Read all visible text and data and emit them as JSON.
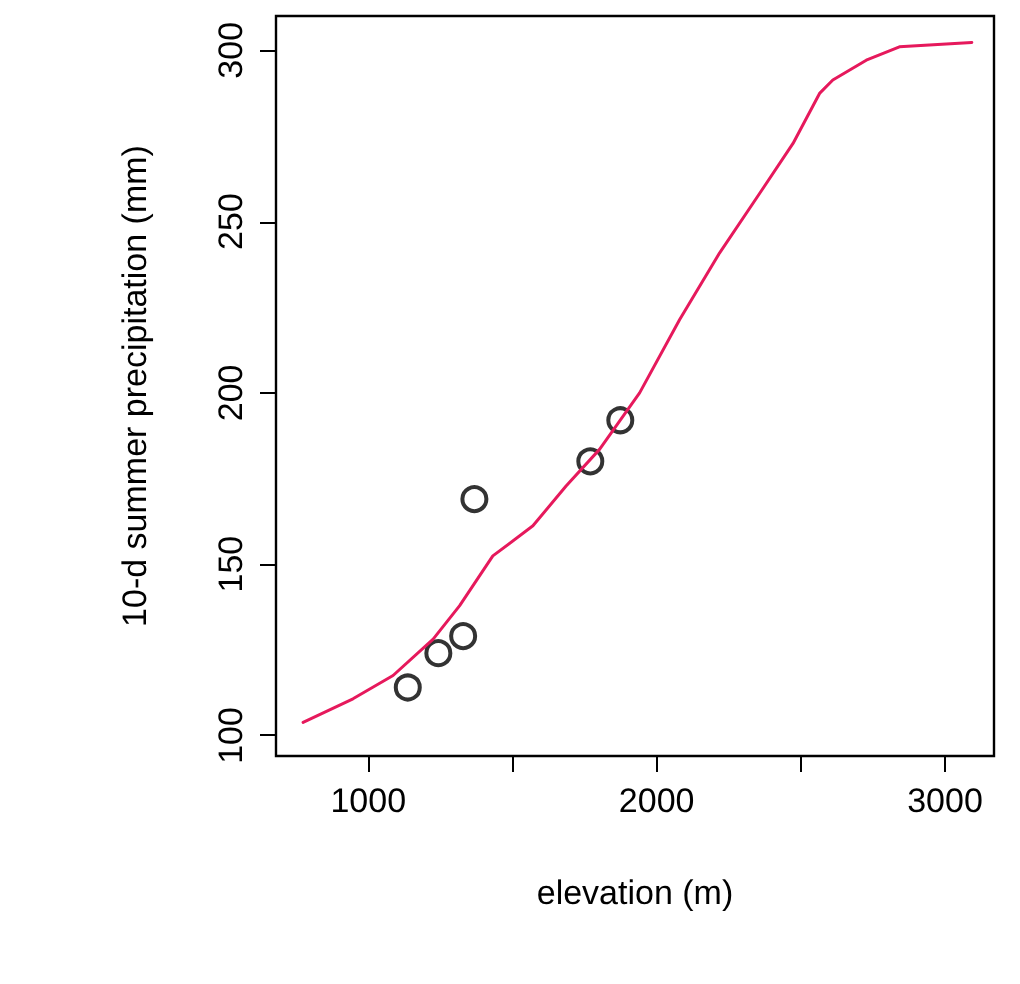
{
  "chart_data": {
    "type": "scatter",
    "xlabel": "elevation (m)",
    "ylabel": "10-d summer precipitation (mm)",
    "xlim": [
      680,
      3170
    ],
    "ylim": [
      94,
      310
    ],
    "xticks": [
      1000,
      {
        "value": 1500,
        "label": null
      },
      2000,
      {
        "value": 2500,
        "label": null
      },
      3000
    ],
    "yticks": [
      100,
      150,
      200,
      250,
      300
    ],
    "marker": "circle",
    "series": [
      {
        "color": "#000000",
        "x": [
          1137,
          1243,
          1329,
          1368,
          1770,
          1874
        ],
        "values": [
          114,
          124,
          129,
          169,
          180,
          192
        ]
      },
      {
        "type": "line",
        "color": "#e6195c",
        "marker": "none",
        "line_style": "solid",
        "x": [
          774,
          947,
          1086,
          1225,
          1317,
          1432,
          1571,
          1686,
          1802,
          1941,
          2080,
          2218,
          2357,
          2473,
          2565,
          2611,
          2727,
          2842,
          3093
        ],
        "values": [
          103.8,
          110.7,
          117.5,
          128.1,
          137.9,
          152.4,
          161.2,
          172.8,
          183.5,
          200,
          221.4,
          240.8,
          258.2,
          272.8,
          287.4,
          291.3,
          297.1,
          301,
          302.3
        ]
      }
    ]
  }
}
